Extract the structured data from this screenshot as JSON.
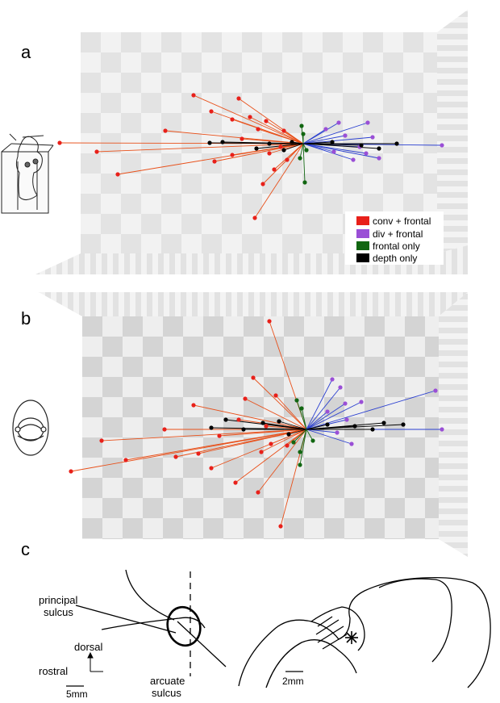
{
  "panels": {
    "a": "a",
    "b": "b",
    "c": "c"
  },
  "legend": [
    {
      "label": "conv + frontal",
      "color": "#e8201a"
    },
    {
      "label": "div + frontal",
      "color": "#9a4fd6"
    },
    {
      "label": "frontal only",
      "color": "#116611"
    },
    {
      "label": "depth only",
      "color": "#000000"
    }
  ],
  "colors": {
    "conv": "#e8201a",
    "conv_line": "#e8501a",
    "div": "#9a4fd6",
    "div_line": "#2a3fd0",
    "frontal": "#116611",
    "depth": "#000000"
  },
  "anatomy": {
    "principal_1": "principal",
    "principal_2": "sulcus",
    "dorsal": "dorsal",
    "rostral": "rostral",
    "arcuate_1": "arcuate",
    "arcuate_2": "sulcus",
    "scale_left": "5mm",
    "scale_right": "2mm"
  },
  "icons": [
    "monkey-side-view-icon",
    "monkey-top-view-icon",
    "asterisk-icon"
  ]
}
